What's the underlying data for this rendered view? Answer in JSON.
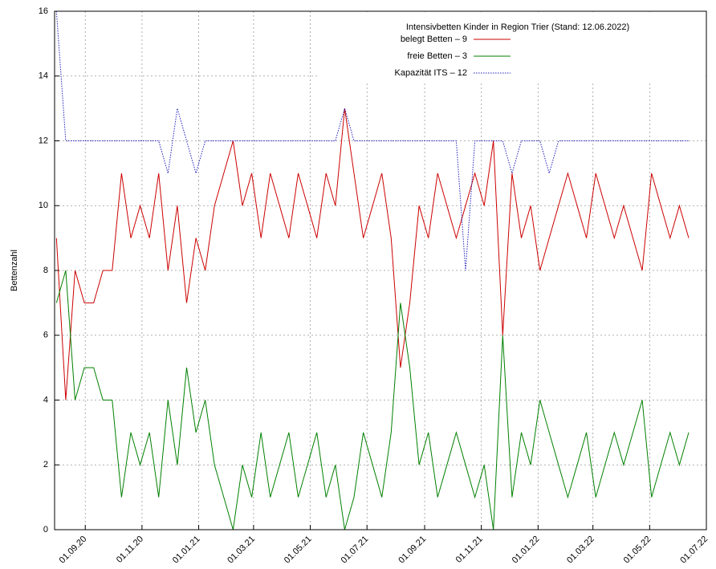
{
  "chart_data": {
    "type": "line",
    "title": "Intensivbetten Kinder in Region Trier (Stand: 12.06.2022)",
    "y_label": "Bettenzahl",
    "legend": "top right",
    "grid": true,
    "x": [
      "2020-08-01",
      "2020-08-11",
      "2020-08-21",
      "2020-08-31",
      "2020-09-10",
      "2020-09-20",
      "2020-09-30",
      "2020-10-10",
      "2020-10-20",
      "2020-10-30",
      "2020-11-09",
      "2020-11-19",
      "2020-11-29",
      "2020-12-09",
      "2020-12-19",
      "2020-12-29",
      "2021-01-08",
      "2021-01-18",
      "2021-01-28",
      "2021-02-07",
      "2021-02-17",
      "2021-02-27",
      "2021-03-09",
      "2021-03-19",
      "2021-03-29",
      "2021-04-08",
      "2021-04-18",
      "2021-04-28",
      "2021-05-08",
      "2021-05-18",
      "2021-05-28",
      "2021-06-07",
      "2021-06-17",
      "2021-06-27",
      "2021-07-07",
      "2021-07-17",
      "2021-07-27",
      "2021-08-06",
      "2021-08-16",
      "2021-08-26",
      "2021-09-05",
      "2021-09-15",
      "2021-09-25",
      "2021-10-05",
      "2021-10-15",
      "2021-10-25",
      "2021-11-04",
      "2021-11-14",
      "2021-11-24",
      "2021-12-04",
      "2021-12-14",
      "2021-12-24",
      "2022-01-03",
      "2022-01-13",
      "2022-01-23",
      "2022-02-02",
      "2022-02-12",
      "2022-02-22",
      "2022-03-04",
      "2022-03-14",
      "2022-03-24",
      "2022-04-03",
      "2022-04-13",
      "2022-04-23",
      "2022-05-03",
      "2022-05-13",
      "2022-05-23",
      "2022-06-02",
      "2022-06-12"
    ],
    "series": [
      {
        "name": "belegt Betten – 9",
        "color": "#cc0000",
        "dash": "none",
        "values": [
          9,
          4,
          8,
          7,
          7,
          8,
          8,
          11,
          9,
          10,
          9,
          11,
          8,
          10,
          7,
          9,
          8,
          10,
          11,
          12,
          10,
          11,
          9,
          11,
          10,
          9,
          11,
          10,
          9,
          11,
          10,
          13,
          11,
          9,
          10,
          11,
          9,
          5,
          7,
          10,
          9,
          11,
          10,
          9,
          10,
          11,
          10,
          12,
          6,
          11,
          9,
          10,
          8,
          9,
          10,
          11,
          10,
          9,
          11,
          10,
          9,
          10,
          9,
          8,
          11,
          10,
          9,
          10,
          9
        ]
      },
      {
        "name": "freie Betten – 3",
        "color": "#008000",
        "dash": "none",
        "values": [
          7,
          8,
          4,
          5,
          5,
          4,
          4,
          1,
          3,
          2,
          3,
          1,
          4,
          2,
          5,
          3,
          4,
          2,
          1,
          0,
          2,
          1,
          3,
          1,
          2,
          3,
          1,
          2,
          3,
          1,
          2,
          0,
          1,
          3,
          2,
          1,
          3,
          7,
          5,
          2,
          3,
          1,
          2,
          3,
          2,
          1,
          2,
          0,
          6,
          1,
          3,
          2,
          4,
          3,
          2,
          1,
          2,
          3,
          1,
          2,
          3,
          2,
          3,
          4,
          1,
          2,
          3,
          2,
          3
        ]
      },
      {
        "name": "Kapazität ITS – 12",
        "color": "#2222bb",
        "dash": "1.5 1.5",
        "values": [
          16,
          12,
          12,
          12,
          12,
          12,
          12,
          12,
          12,
          12,
          12,
          12,
          11,
          13,
          12,
          11,
          12,
          12,
          12,
          12,
          12,
          12,
          12,
          12,
          12,
          12,
          12,
          12,
          12,
          12,
          12,
          13,
          12,
          12,
          12,
          12,
          12,
          12,
          12,
          12,
          12,
          12,
          12,
          12,
          8,
          12,
          12,
          12,
          12,
          11,
          12,
          12,
          12,
          11,
          12,
          12,
          12,
          12,
          12,
          12,
          12,
          12,
          12,
          12,
          12,
          12,
          12,
          12,
          12
        ]
      }
    ],
    "xlim": [
      "2020-07-30",
      "2022-07-01"
    ],
    "xticks": [
      {
        "value": "2020-09-01",
        "label": "01.09.20"
      },
      {
        "value": "2020-11-01",
        "label": "01.11.20"
      },
      {
        "value": "2021-01-01",
        "label": "01.01.21"
      },
      {
        "value": "2021-03-01",
        "label": "01.03.21"
      },
      {
        "value": "2021-05-01",
        "label": "01.05.21"
      },
      {
        "value": "2021-07-01",
        "label": "01.07.21"
      },
      {
        "value": "2021-09-01",
        "label": "01.09.21"
      },
      {
        "value": "2021-11-01",
        "label": "01.11.21"
      },
      {
        "value": "2022-01-01",
        "label": "01.01.22"
      },
      {
        "value": "2022-03-01",
        "label": "01.03.22"
      },
      {
        "value": "2022-05-01",
        "label": "01.05.22"
      },
      {
        "value": "2022-07-01",
        "label": "01.07.22"
      }
    ],
    "ylim": [
      0,
      16
    ],
    "yticks": [
      0,
      2,
      4,
      6,
      8,
      10,
      12,
      14,
      16
    ]
  }
}
